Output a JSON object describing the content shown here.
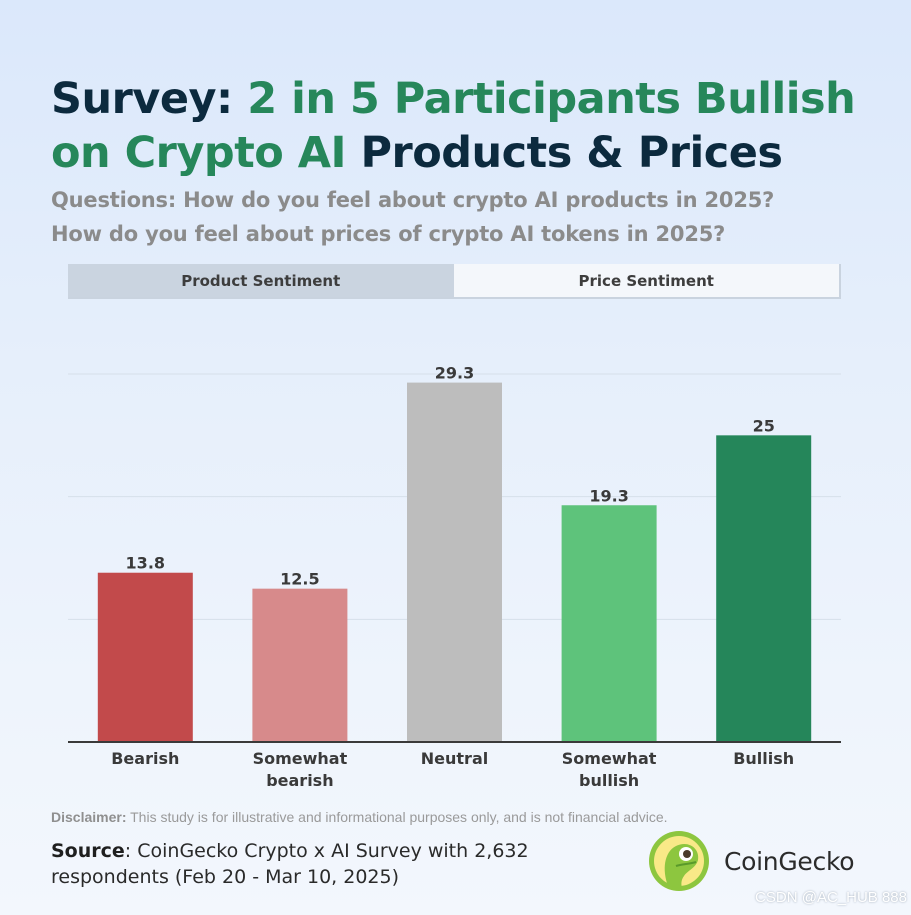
{
  "header": {
    "title_part1": "Survey: ",
    "title_part2": "2 in 5 Participants Bullish on Crypto AI",
    "title_part3": " Products & Prices",
    "subtitle_line1": "Questions: How do you feel about crypto AI products in 2025?",
    "subtitle_line2": "How do you feel about prices of crypto AI tokens in 2025?"
  },
  "tabs": [
    {
      "label": "Product Sentiment",
      "active": false
    },
    {
      "label": "Price Sentiment",
      "active": true
    }
  ],
  "chart_data": {
    "type": "bar",
    "categories": [
      [
        "Bearish"
      ],
      [
        "Somewhat",
        "bearish"
      ],
      [
        "Neutral"
      ],
      [
        "Somewhat",
        "bullish"
      ],
      [
        "Bullish"
      ]
    ],
    "values": [
      13.8,
      12.5,
      29.3,
      19.3,
      25
    ],
    "value_labels": [
      "13.8",
      "12.5",
      "29.3",
      "19.3",
      "25"
    ],
    "colors": [
      "#c24a4b",
      "#d78a8b",
      "#bdbdbd",
      "#5ec37b",
      "#25865a"
    ],
    "ylim": [
      0,
      30
    ],
    "gridlines": [
      10,
      20,
      30
    ],
    "grid": true,
    "title": "",
    "xlabel": "",
    "ylabel": ""
  },
  "footer": {
    "disclaimer_label": "Disclaimer:",
    "disclaimer_text": " This study is for illustrative and informational purposes only, and is not financial advice.",
    "source_label": "Source",
    "source_text": ": CoinGecko Crypto x AI Survey with 2,632 respondents (Feb 20 - Mar 10, 2025)",
    "brand_name": "CoinGecko",
    "watermark": "CSDN @AC_HUB 888"
  },
  "colors": {
    "title_dark": "#0c2a3e",
    "title_green": "#26875a",
    "subtitle": "#8b8b8b"
  },
  "icons": [
    "coingecko-logo-icon"
  ]
}
